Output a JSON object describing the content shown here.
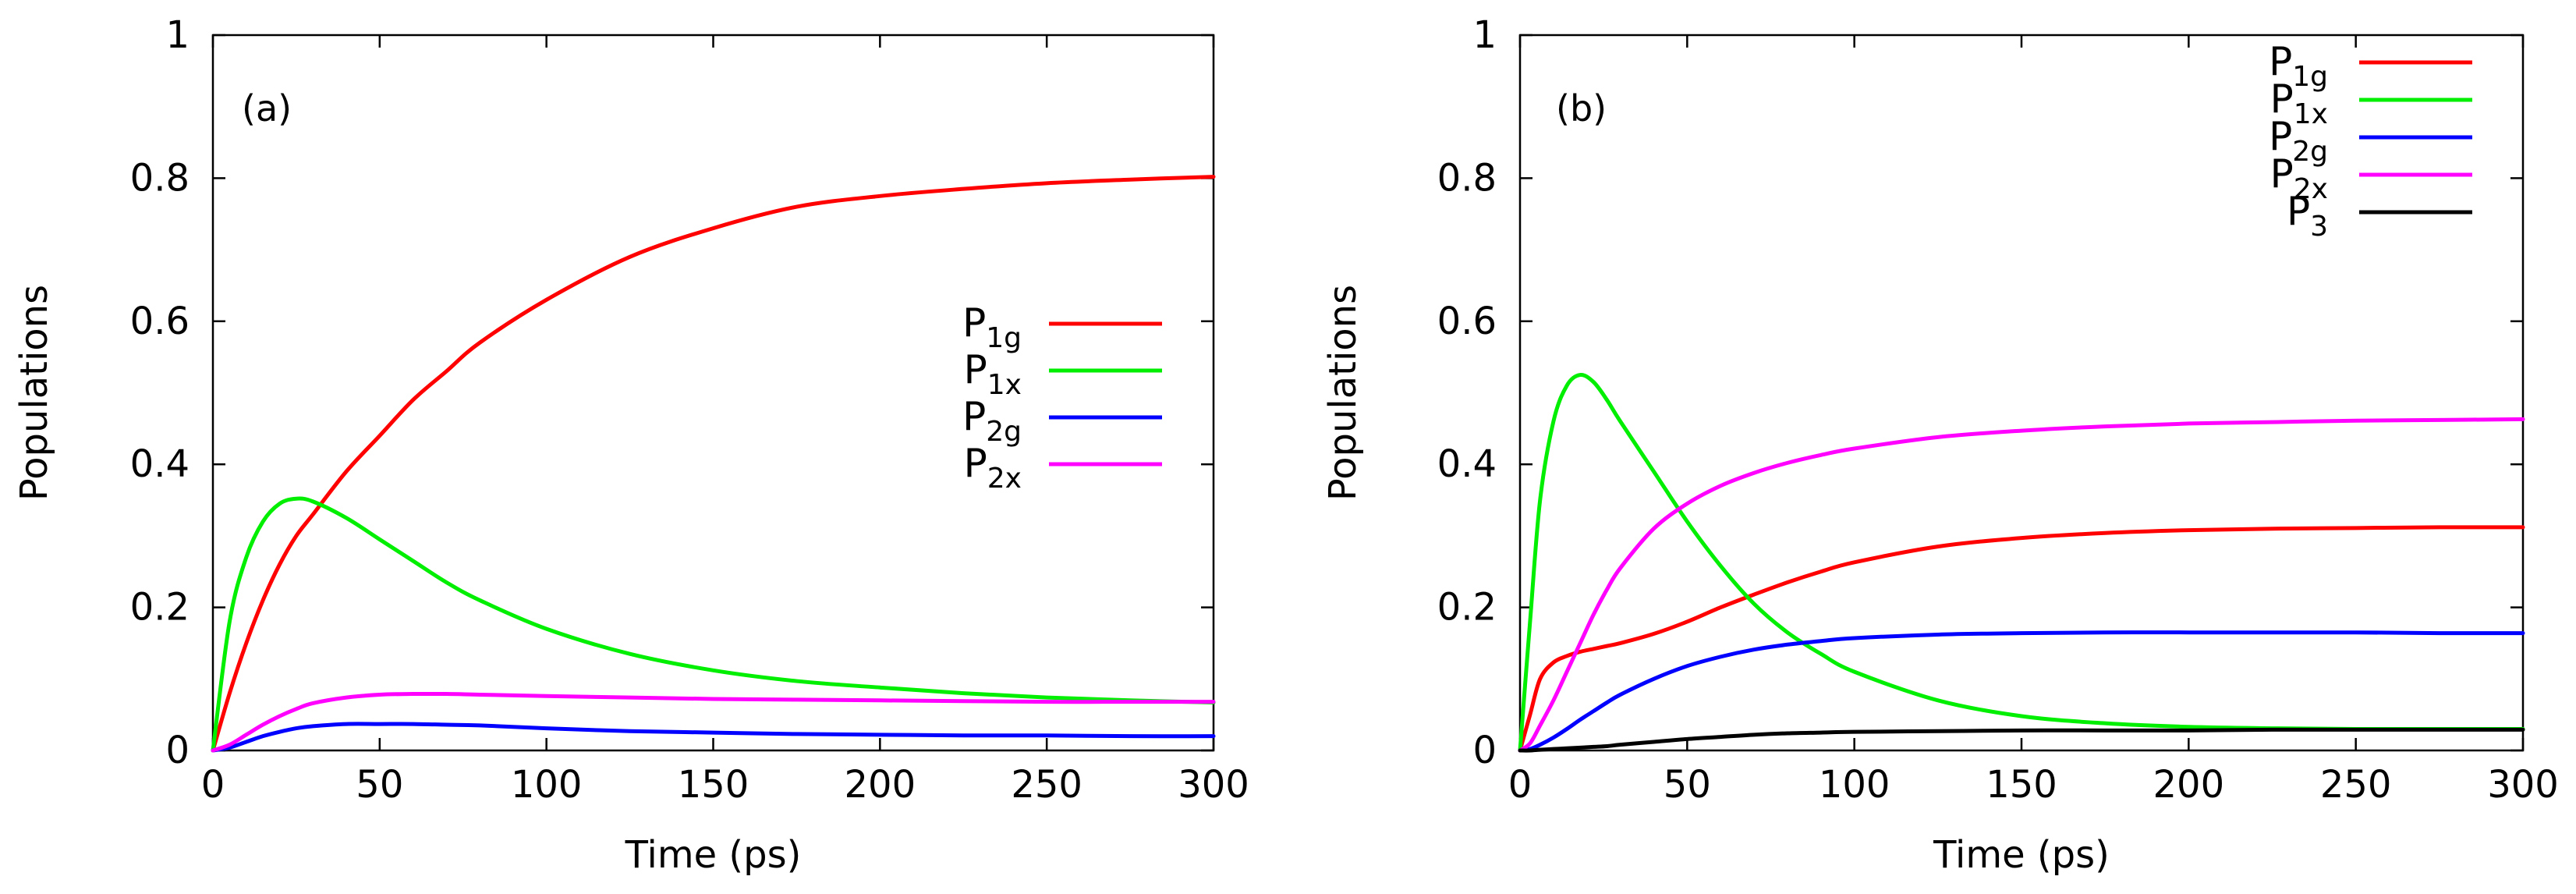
{
  "chart_data": [
    {
      "type": "line",
      "panel_label": "(a)",
      "xlabel": "Time (ps)",
      "ylabel": "Populations",
      "xlim": [
        0,
        300
      ],
      "ylim": [
        0,
        1
      ],
      "xticks": [
        "0",
        "50",
        "100",
        "150",
        "200",
        "250",
        "300"
      ],
      "yticks": [
        "0",
        "0.2",
        "0.4",
        "0.6",
        "0.8",
        "1"
      ],
      "legend_position": "center-right",
      "x": [
        0,
        5,
        10,
        15,
        20,
        25,
        30,
        40,
        50,
        60,
        70,
        80,
        100,
        125,
        150,
        175,
        200,
        225,
        250,
        275,
        300
      ],
      "series": [
        {
          "name": "P",
          "sub": "1g",
          "color": "#ff0000",
          "values": [
            0,
            0.08,
            0.15,
            0.21,
            0.26,
            0.3,
            0.33,
            0.39,
            0.44,
            0.49,
            0.53,
            0.57,
            0.63,
            0.69,
            0.73,
            0.76,
            0.775,
            0.785,
            0.793,
            0.798,
            0.802
          ]
        },
        {
          "name": "P",
          "sub": "1x",
          "color": "#00ee00",
          "values": [
            0,
            0.18,
            0.27,
            0.32,
            0.345,
            0.352,
            0.348,
            0.325,
            0.295,
            0.265,
            0.235,
            0.21,
            0.17,
            0.135,
            0.112,
            0.097,
            0.088,
            0.08,
            0.074,
            0.07,
            0.067
          ]
        },
        {
          "name": "P",
          "sub": "2g",
          "color": "#0000ff",
          "values": [
            0,
            0.004,
            0.012,
            0.02,
            0.026,
            0.031,
            0.034,
            0.037,
            0.037,
            0.037,
            0.036,
            0.035,
            0.031,
            0.027,
            0.025,
            0.023,
            0.022,
            0.021,
            0.021,
            0.02,
            0.02
          ]
        },
        {
          "name": "P",
          "sub": "2x",
          "color": "#ff00ff",
          "values": [
            0,
            0.008,
            0.022,
            0.036,
            0.048,
            0.058,
            0.066,
            0.074,
            0.078,
            0.079,
            0.079,
            0.078,
            0.076,
            0.074,
            0.072,
            0.071,
            0.07,
            0.069,
            0.068,
            0.068,
            0.068
          ]
        }
      ]
    },
    {
      "type": "line",
      "panel_label": "(b)",
      "xlabel": "Time (ps)",
      "ylabel": "Populations",
      "xlim": [
        0,
        300
      ],
      "ylim": [
        0,
        1
      ],
      "xticks": [
        "0",
        "50",
        "100",
        "150",
        "200",
        "250",
        "300"
      ],
      "yticks": [
        "0",
        "0.2",
        "0.4",
        "0.6",
        "0.8",
        "1"
      ],
      "legend_position": "top-right",
      "x": [
        0,
        3,
        6,
        10,
        14,
        18,
        22,
        26,
        30,
        40,
        50,
        60,
        70,
        80,
        90,
        100,
        125,
        150,
        175,
        200,
        225,
        250,
        275,
        300
      ],
      "series": [
        {
          "name": "P",
          "sub": "1g",
          "color": "#ff0000",
          "values": [
            0,
            0.05,
            0.1,
            0.123,
            0.132,
            0.138,
            0.142,
            0.146,
            0.15,
            0.163,
            0.18,
            0.2,
            0.218,
            0.235,
            0.25,
            0.263,
            0.285,
            0.297,
            0.304,
            0.308,
            0.31,
            0.311,
            0.312,
            0.312
          ]
        },
        {
          "name": "P",
          "sub": "1x",
          "color": "#00ee00",
          "values": [
            0,
            0.18,
            0.35,
            0.46,
            0.51,
            0.525,
            0.515,
            0.49,
            0.46,
            0.39,
            0.32,
            0.258,
            0.205,
            0.165,
            0.135,
            0.11,
            0.07,
            0.048,
            0.038,
            0.033,
            0.031,
            0.03,
            0.03,
            0.03
          ]
        },
        {
          "name": "P",
          "sub": "2g",
          "color": "#0000ff",
          "values": [
            0,
            0.002,
            0.008,
            0.018,
            0.03,
            0.043,
            0.055,
            0.067,
            0.078,
            0.1,
            0.118,
            0.131,
            0.141,
            0.148,
            0.153,
            0.157,
            0.162,
            0.164,
            0.165,
            0.165,
            0.165,
            0.165,
            0.164,
            0.164
          ]
        },
        {
          "name": "P",
          "sub": "2x",
          "color": "#ff00ff",
          "values": [
            0,
            0.01,
            0.035,
            0.07,
            0.11,
            0.15,
            0.19,
            0.225,
            0.255,
            0.31,
            0.345,
            0.37,
            0.388,
            0.402,
            0.413,
            0.422,
            0.438,
            0.447,
            0.453,
            0.457,
            0.459,
            0.461,
            0.462,
            0.463
          ]
        },
        {
          "name": "P",
          "sub": "3",
          "color": "#000000",
          "values": [
            0,
            0,
            0.001,
            0.002,
            0.003,
            0.004,
            0.005,
            0.006,
            0.008,
            0.012,
            0.016,
            0.019,
            0.022,
            0.024,
            0.025,
            0.026,
            0.027,
            0.028,
            0.028,
            0.028,
            0.029,
            0.029,
            0.029,
            0.029
          ]
        }
      ]
    }
  ]
}
